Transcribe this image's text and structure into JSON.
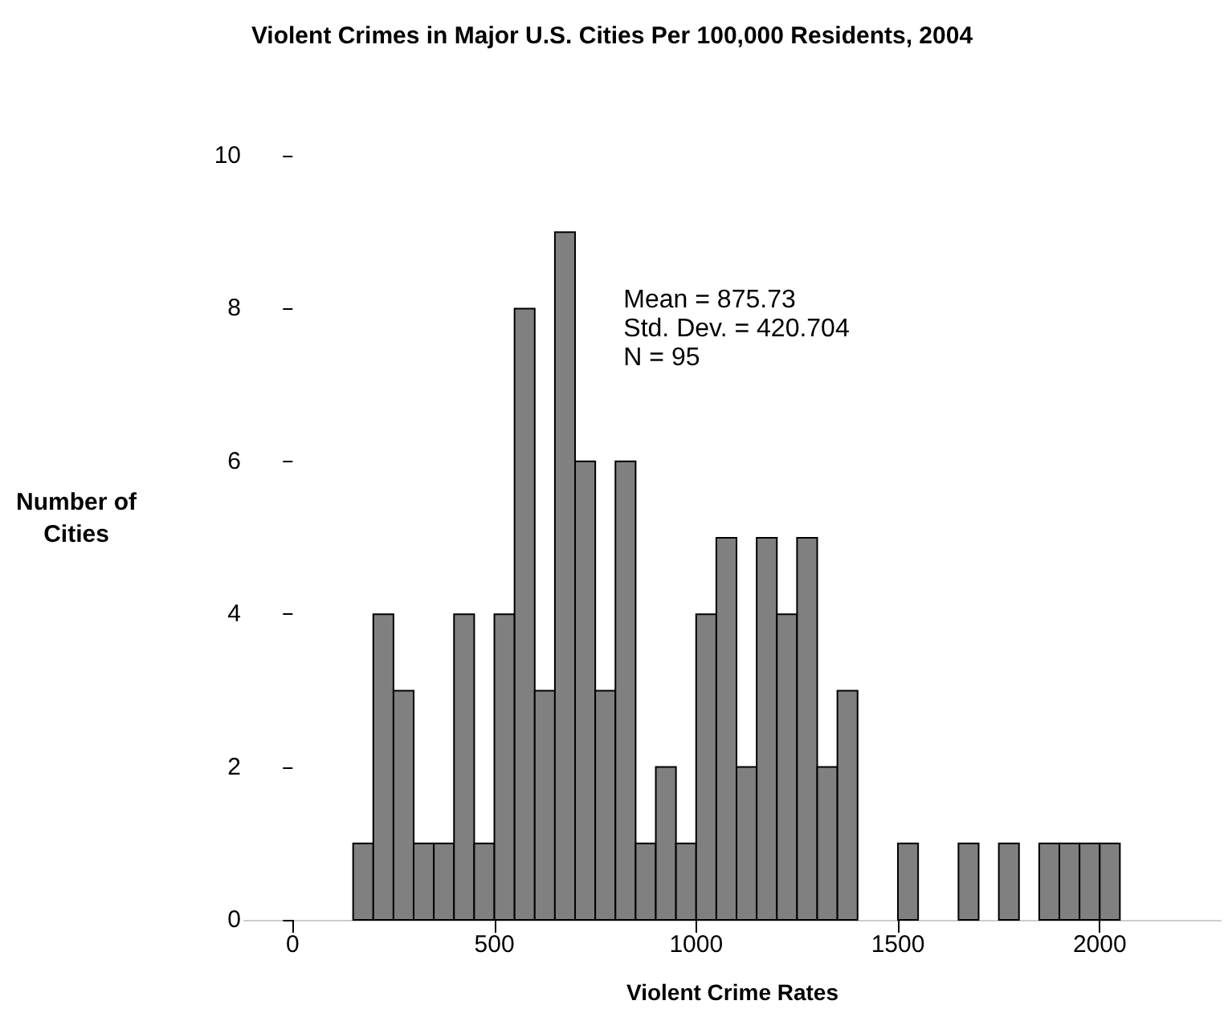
{
  "chart_data": {
    "type": "histogram",
    "title": "Violent Crimes in Major U.S. Cities Per 100,000 Residents, 2004",
    "xlabel": "Violent Crime Rates",
    "ylabel": "Number of Cities",
    "bins": [
      150,
      200,
      250,
      300,
      350,
      400,
      450,
      500,
      550,
      600,
      650,
      700,
      750,
      800,
      850,
      900,
      950,
      1000,
      1050,
      1100,
      1150,
      1200,
      1250,
      1300,
      1350,
      1400,
      1450,
      1500,
      1550,
      1600,
      1650,
      1700,
      1750,
      1800,
      1850,
      1900,
      1950,
      2000,
      2050
    ],
    "values": [
      1,
      4,
      3,
      1,
      1,
      4,
      1,
      4,
      8,
      3,
      9,
      6,
      3,
      6,
      1,
      2,
      1,
      4,
      5,
      2,
      5,
      4,
      5,
      2,
      3,
      0,
      0,
      1,
      0,
      0,
      1,
      0,
      1,
      0,
      1,
      1,
      1,
      1
    ],
    "color": "#808080",
    "annotations": [
      "Mean = 875.73",
      "Std. Dev. = 420.704",
      "N = 95"
    ],
    "xlim": [
      -120,
      2300
    ],
    "xticks": [
      0,
      500,
      1000,
      1500,
      2000
    ],
    "ylim": [
      0,
      10
    ],
    "yticks": [
      0,
      2,
      4,
      6,
      8,
      10
    ],
    "grid": false
  }
}
